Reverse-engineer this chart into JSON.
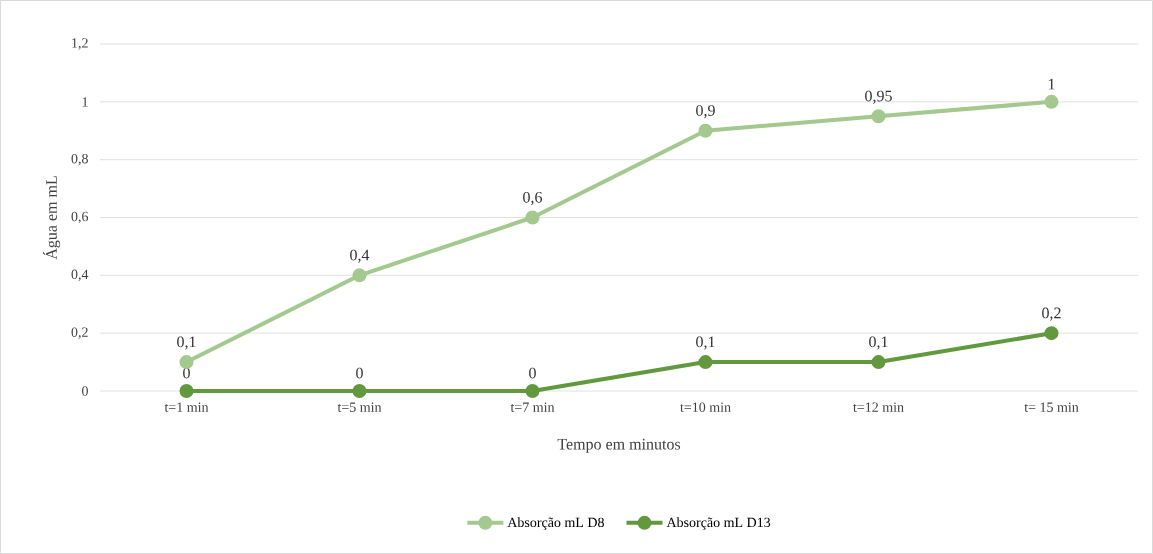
{
  "chart_data": {
    "type": "line",
    "xlabel": "Tempo em minutos",
    "ylabel": "Água em mL",
    "categories": [
      "t=1 min",
      "t=5 min",
      "t=7 min",
      "t=10 min",
      "t=12 min",
      "t= 15 min"
    ],
    "series": [
      {
        "name": "Absorção mL D8",
        "color": "#a3c98f",
        "values": [
          0.1,
          0.4,
          0.6,
          0.9,
          0.95,
          1
        ],
        "value_labels": [
          "0,1",
          "0,4",
          "0,6",
          "0,9",
          "0,95",
          "1"
        ]
      },
      {
        "name": "Absorção mL D13",
        "color": "#62993e",
        "values": [
          0,
          0,
          0,
          0.1,
          0.1,
          0.2
        ],
        "value_labels": [
          "0",
          "0",
          "0",
          "0,1",
          "0,1",
          "0,2"
        ]
      }
    ],
    "ylim": [
      0,
      1.2
    ],
    "yticks": [
      0,
      {
        "value": 0.2,
        "label": "0,2"
      },
      {
        "value": 0.4,
        "label": "0,4"
      },
      {
        "value": 0.6,
        "label": "0,6"
      },
      {
        "value": 0.8,
        "label": "0,8"
      },
      1,
      {
        "value": 1.2,
        "label": "1,2"
      }
    ],
    "grid": "y",
    "legend": "bottom",
    "marker": "circle",
    "line_style": "solid"
  }
}
